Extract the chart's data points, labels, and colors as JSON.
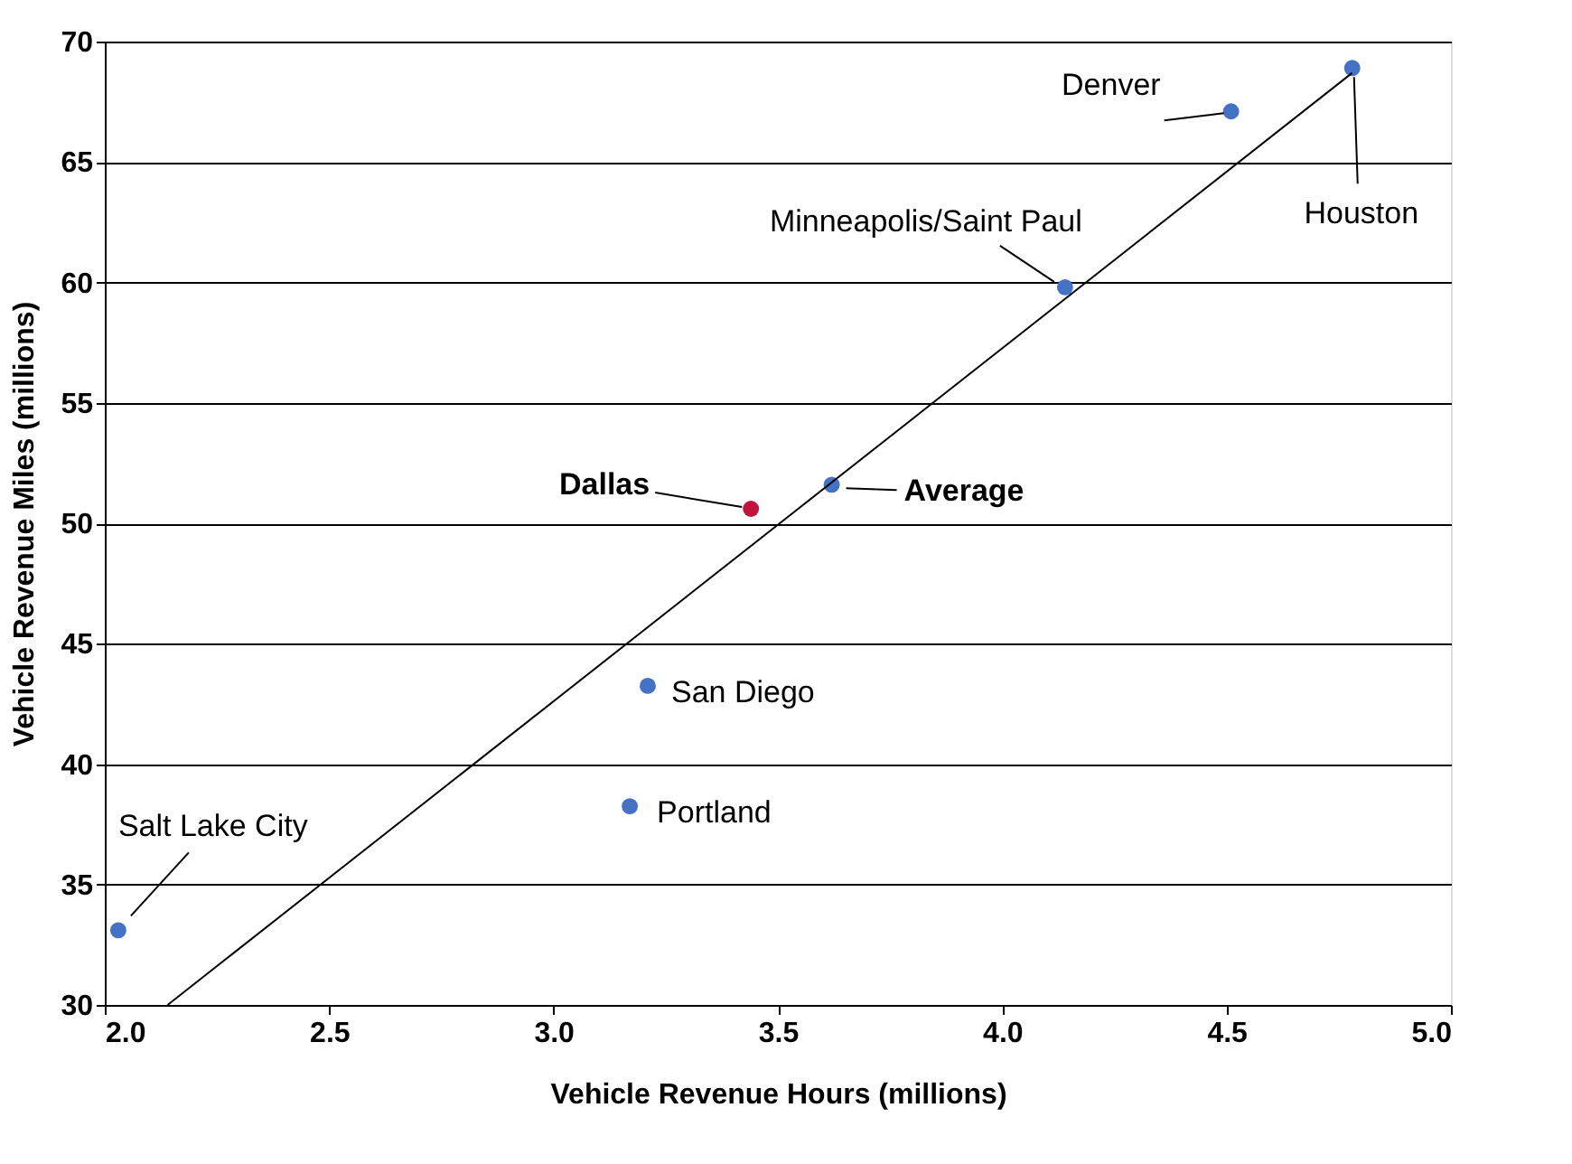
{
  "chart_data": {
    "type": "scatter",
    "xlabel": "Vehicle Revenue Hours (millions)",
    "ylabel": "Vehicle Revenue Miles (millions)",
    "x": [
      2.03,
      3.17,
      3.21,
      3.44,
      3.62,
      4.14,
      4.51,
      4.78
    ],
    "values": [
      33.1,
      38.25,
      43.25,
      50.6,
      51.6,
      59.8,
      67.1,
      68.9
    ],
    "colors": [
      "#4472c4",
      "#4472c4",
      "#4472c4",
      "#c0143c",
      "#4472c4",
      "#4472c4",
      "#4472c4",
      "#4472c4"
    ],
    "series": [
      {
        "type": "line",
        "color": "#000000",
        "marker": "none",
        "line_style": "solid",
        "x": [
          2.14,
          4.78
        ],
        "values": [
          30,
          68.7
        ]
      }
    ],
    "annotations": [
      {
        "text": "Salt Lake City",
        "x": 2.03,
        "y": 33.1
      },
      {
        "text": "Portland",
        "x": 3.17,
        "y": 38.25
      },
      {
        "text": "San Diego",
        "x": 3.21,
        "y": 43.25
      },
      {
        "text": "Dallas",
        "x": 3.44,
        "y": 50.6
      },
      {
        "text": "Average",
        "x": 3.62,
        "y": 51.6
      },
      {
        "text": "Minneapolis/Saint Paul",
        "x": 4.14,
        "y": 59.8
      },
      {
        "text": "Denver",
        "x": 4.51,
        "y": 67.1
      },
      {
        "text": "Houston",
        "x": 4.78,
        "y": 68.9
      }
    ],
    "xlim": [
      2.0,
      5.0
    ],
    "xticks": [
      {
        "value": 2.0,
        "label": "2.0"
      },
      2.5,
      {
        "value": 3.0,
        "label": "3.0"
      },
      3.5,
      {
        "value": 4.0,
        "label": "4.0"
      },
      4.5,
      {
        "value": 5.0,
        "label": "5.0"
      }
    ],
    "ylim": [
      30,
      70
    ],
    "yticks": [
      30,
      35,
      40,
      45,
      50,
      55,
      60,
      65,
      70
    ],
    "grid": "y",
    "marker": "circle"
  }
}
